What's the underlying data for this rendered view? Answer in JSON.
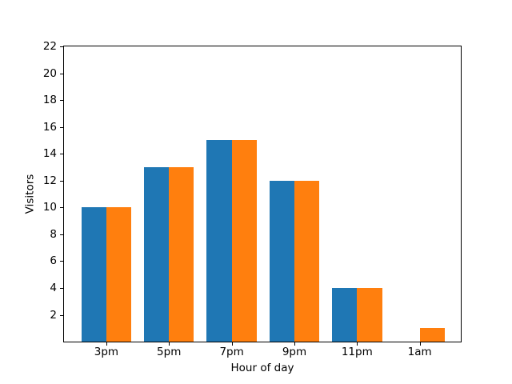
{
  "figure": {
    "background": "#ffffff"
  },
  "chart_data": {
    "type": "bar",
    "title": "",
    "xlabel": "Hour of day",
    "ylabel": "Visitors",
    "categories": [
      "3pm",
      "5pm",
      "7pm",
      "9pm",
      "11pm",
      "1am"
    ],
    "series": [
      {
        "name": "blue",
        "color": "#1f77b4",
        "values": [
          10,
          13,
          15,
          12,
          4,
          0
        ]
      },
      {
        "name": "orange",
        "color": "#ff7f0e",
        "values": [
          10,
          13,
          15,
          12,
          4,
          1
        ]
      }
    ],
    "yticks": [
      2,
      4,
      6,
      8,
      10,
      12,
      14,
      16,
      18,
      20,
      22
    ],
    "ylim": [
      0,
      22
    ],
    "xlim": [
      -0.675,
      5.655
    ],
    "bar_width_units": 0.4,
    "grid": false,
    "legend": "none"
  }
}
